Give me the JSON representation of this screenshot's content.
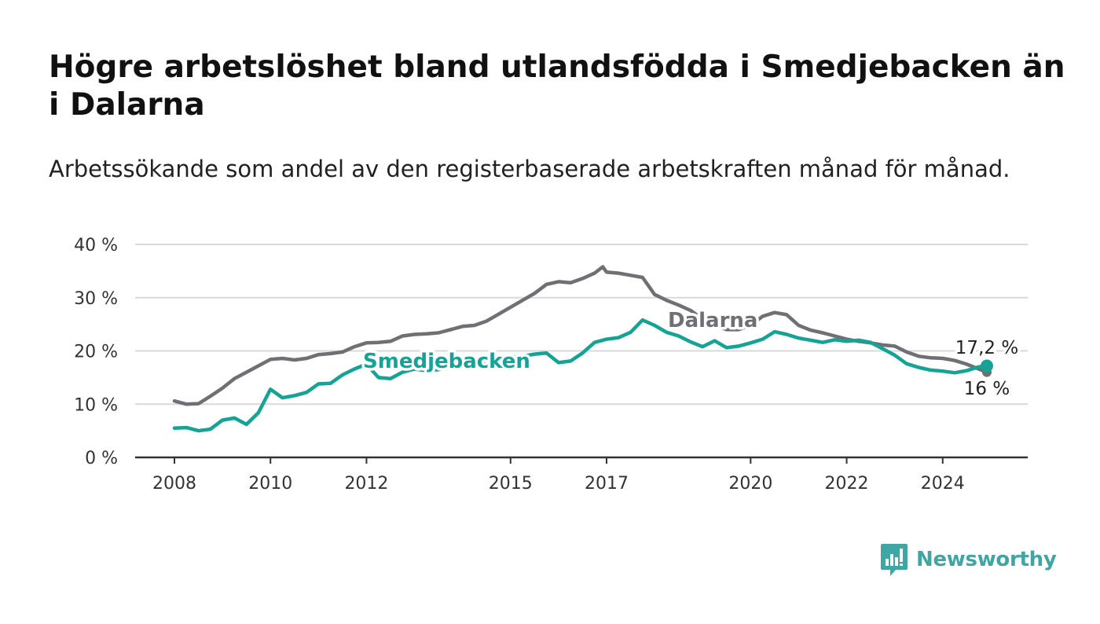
{
  "title": "Högre arbetslöshet bland utlandsfödda i Smedjebacken än i Dalarna",
  "subtitle": "Arbetssökande som andel av den registerbaserade arbetskraften månad för månad.",
  "brand": {
    "name": "Newsworthy",
    "icon": "newsworthy-bar-chart-logo-icon",
    "color": "#3fa6a3"
  },
  "chart_data": {
    "type": "line",
    "xlim": [
      2008.0,
      2025.6
    ],
    "ylim": [
      0,
      40
    ],
    "yticks": [
      0,
      10,
      20,
      30,
      40
    ],
    "ytick_labels": [
      "0 %",
      "10 %",
      "20 %",
      "30 %",
      "40 %"
    ],
    "xticks": [
      2008,
      2010,
      2012,
      2015,
      2017,
      2020,
      2022,
      2024
    ],
    "xtick_labels": [
      "2008",
      "2010",
      "2012",
      "2015",
      "2017",
      "2020",
      "2022",
      "2024"
    ],
    "grid": true,
    "series": [
      {
        "name": "Dalarna",
        "color": "#6f6f75",
        "end_label": "16 %",
        "x": [
          2008.0,
          2008.25,
          2008.5,
          2008.75,
          2009.0,
          2009.25,
          2009.5,
          2009.75,
          2010.0,
          2010.25,
          2010.5,
          2010.75,
          2011.0,
          2011.25,
          2011.5,
          2011.75,
          2012.0,
          2012.25,
          2012.5,
          2012.75,
          2013.0,
          2013.25,
          2013.5,
          2013.75,
          2014.0,
          2014.25,
          2014.5,
          2014.75,
          2015.0,
          2015.25,
          2015.5,
          2015.75,
          2016.0,
          2016.25,
          2016.5,
          2016.75,
          2016.92,
          2017.0,
          2017.25,
          2017.5,
          2017.75,
          2018.0,
          2018.25,
          2018.5,
          2018.75,
          2019.0,
          2019.25,
          2019.5,
          2019.75,
          2020.0,
          2020.25,
          2020.5,
          2020.75,
          2021.0,
          2021.25,
          2021.5,
          2021.75,
          2022.0,
          2022.25,
          2022.5,
          2022.75,
          2023.0,
          2023.25,
          2023.5,
          2023.75,
          2024.0,
          2024.25,
          2024.5,
          2024.75,
          2024.92
        ],
        "values": [
          10.6,
          10.0,
          10.1,
          11.5,
          13.0,
          14.8,
          16.0,
          17.2,
          18.4,
          18.6,
          18.3,
          18.6,
          19.3,
          19.5,
          19.8,
          20.8,
          21.5,
          21.6,
          21.8,
          22.8,
          23.1,
          23.2,
          23.4,
          24.0,
          24.6,
          24.8,
          25.6,
          26.9,
          28.2,
          29.5,
          30.8,
          32.5,
          33.0,
          32.8,
          33.6,
          34.6,
          35.8,
          34.8,
          34.6,
          34.2,
          33.8,
          30.6,
          29.5,
          28.6,
          27.6,
          26.0,
          24.8,
          24.0,
          24.0,
          24.8,
          26.5,
          27.2,
          26.8,
          24.8,
          23.9,
          23.4,
          22.8,
          22.2,
          21.8,
          21.5,
          21.1,
          20.9,
          19.8,
          19.0,
          18.7,
          18.6,
          18.2,
          17.5,
          16.6,
          16.0
        ]
      },
      {
        "name": "Smedjebacken",
        "color": "#14a395",
        "end_label": "17,2 %",
        "x": [
          2008.0,
          2008.25,
          2008.5,
          2008.75,
          2009.0,
          2009.25,
          2009.5,
          2009.75,
          2010.0,
          2010.25,
          2010.5,
          2010.75,
          2011.0,
          2011.25,
          2011.5,
          2011.75,
          2012.0,
          2012.25,
          2012.5,
          2012.75,
          2013.0,
          2013.25,
          2013.5,
          2013.75,
          2014.0,
          2014.25,
          2014.5,
          2014.75,
          2015.0,
          2015.25,
          2015.5,
          2015.75,
          2016.0,
          2016.25,
          2016.5,
          2016.75,
          2017.0,
          2017.25,
          2017.5,
          2017.75,
          2018.0,
          2018.25,
          2018.5,
          2018.75,
          2019.0,
          2019.25,
          2019.5,
          2019.75,
          2020.0,
          2020.25,
          2020.5,
          2020.75,
          2021.0,
          2021.25,
          2021.5,
          2021.75,
          2022.0,
          2022.25,
          2022.5,
          2022.75,
          2023.0,
          2023.25,
          2023.5,
          2023.75,
          2024.0,
          2024.25,
          2024.5,
          2024.75,
          2024.92
        ],
        "values": [
          5.5,
          5.6,
          5.0,
          5.3,
          7.0,
          7.4,
          6.2,
          8.4,
          12.8,
          11.2,
          11.6,
          12.2,
          13.8,
          13.9,
          15.5,
          16.6,
          17.5,
          15.0,
          14.8,
          16.0,
          16.6,
          16.3,
          16.5,
          16.9,
          17.2,
          17.3,
          17.6,
          18.1,
          18.8,
          19.0,
          19.4,
          19.6,
          17.8,
          18.1,
          19.6,
          21.6,
          22.2,
          22.5,
          23.5,
          25.8,
          24.8,
          23.5,
          22.8,
          21.7,
          20.8,
          21.9,
          20.6,
          20.9,
          21.5,
          22.2,
          23.6,
          23.1,
          22.4,
          22.0,
          21.6,
          22.1,
          21.8,
          22.0,
          21.6,
          20.4,
          19.2,
          17.6,
          16.9,
          16.4,
          16.2,
          15.9,
          16.3,
          17.0,
          17.2
        ]
      }
    ]
  }
}
